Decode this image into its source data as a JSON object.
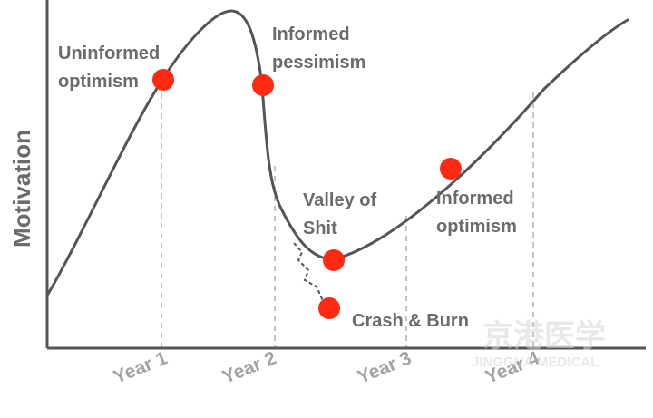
{
  "axis": {
    "ylabel": "Motivation"
  },
  "years": [
    "Year 1",
    "Year 2",
    "Year 3",
    "Year 4"
  ],
  "stages": [
    {
      "line1": "Uninformed",
      "line2": "optimism"
    },
    {
      "line1": "Informed",
      "line2": "pessimism"
    },
    {
      "line1": "Valley of",
      "line2": "Shit"
    },
    {
      "line1": "Crash & Burn"
    },
    {
      "line1": "Informed",
      "line2": "optimism"
    }
  ],
  "colors": {
    "curve": "#555555",
    "marker": "#ff2a12",
    "grid": "#c4c4c4",
    "axis": "#555555"
  },
  "watermark": {
    "main": "京港医学",
    "sub": "JINGGUA MEDICAL"
  }
}
